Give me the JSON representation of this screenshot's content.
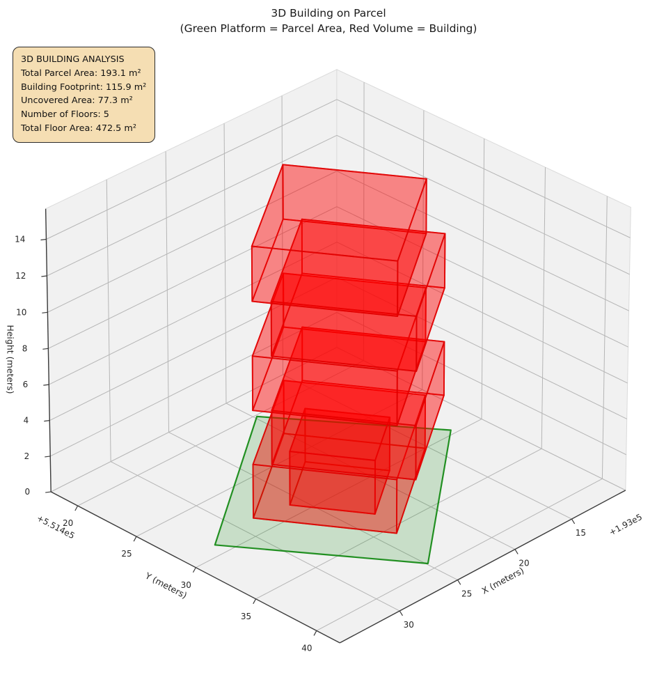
{
  "title": {
    "line1": "3D Building on Parcel",
    "line2": "(Green Platform = Parcel Area, Red Volume = Building)"
  },
  "info_box": {
    "lines": [
      "3D BUILDING ANALYSIS",
      "Total Parcel Area: 193.1 m²",
      "Building Footprint: 115.9 m²",
      "Uncovered Area: 77.3 m²",
      "Number of Floors: 5",
      "Total Floor Area: 472.5 m²"
    ]
  },
  "chart_data": {
    "type": "3d-building-extrusion",
    "axes": {
      "x": {
        "label": "X (meters)",
        "ticks": [
          15,
          20,
          25,
          30
        ],
        "offset_text": "+1.93e5",
        "range": [
          10.2,
          35.1
        ]
      },
      "y": {
        "label": "Y (meters)",
        "ticks": [
          20,
          25,
          30,
          35,
          40
        ],
        "offset_text": "+5.514e5",
        "range": [
          17.7,
          41.9
        ]
      },
      "z": {
        "label": "Height (meters)",
        "ticks": [
          0,
          2,
          4,
          6,
          8,
          10,
          12,
          14
        ],
        "range": [
          0,
          15.66
        ]
      }
    },
    "parcel": {
      "polygon_xy": [
        [
          19.8,
          20.14
        ],
        [
          12.52,
          29.6
        ],
        [
          24.9,
          39.38
        ],
        [
          32.44,
          28.98
        ]
      ],
      "z": 0,
      "area_m2": 193.1
    },
    "building": {
      "num_floors": 5,
      "floor_height_m": 3,
      "tower_footprint_xy": [
        [
          20.09,
          22.73
        ],
        [
          15.23,
          29.99
        ],
        [
          23.71,
          35.67
        ],
        [
          28.57,
          28.41
        ]
      ],
      "alt_floor_offset_xy": [
        -0.8,
        0.8
      ],
      "annex_footprint_xy": [
        [
          21.59,
          25.99
        ],
        [
          18.69,
          30.31
        ],
        [
          23.01,
          33.21
        ],
        [
          25.91,
          28.89
        ]
      ],
      "annex_floors": 1,
      "footprint_area_m2": 115.9,
      "uncovered_area_m2": 77.3,
      "total_floor_area_m2": 472.5
    },
    "view": {
      "elev_deg": 30,
      "azim_deg": 44.7,
      "dist": 20,
      "box_extents": [
        0.91,
        0.91,
        0.7246
      ]
    },
    "colors": {
      "building_fill": "#ff0000",
      "building_edge": "#e00000",
      "parcel_fill": "#008000",
      "parcel_edge": "#008000",
      "pane": "#f1f1f1",
      "pane_edge": "#dadada",
      "grid": "#b5b5b5",
      "axis": "#3a3a3a",
      "text": "#262626",
      "info_bg": "#f5deb3",
      "info_border": "#2b2b2b"
    }
  }
}
